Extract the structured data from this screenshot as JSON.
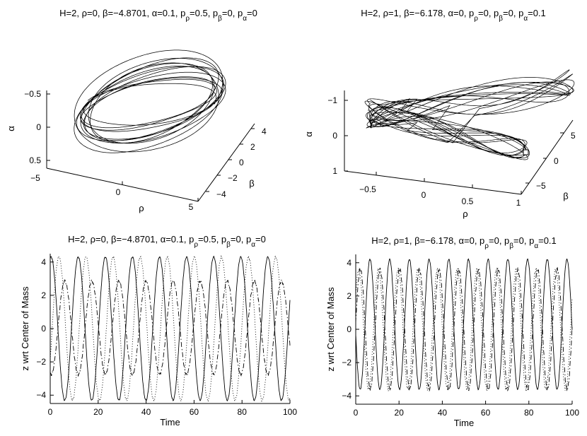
{
  "chart_data": [
    {
      "type": "line",
      "view": "3d",
      "title": {
        "base": "H=2, ρ=0, β=−4.8701, α=0.1, p",
        "parts": [
          [
            "ρ",
            "=0.5, p"
          ],
          [
            "β",
            "=0, p"
          ],
          [
            "α",
            "=0"
          ]
        ]
      },
      "xlabel": "ρ",
      "ylabel": "β",
      "zlabel": "α",
      "xlim": [
        -5,
        5
      ],
      "ylim": [
        -4,
        4
      ],
      "zlim": [
        -0.5,
        0.5
      ],
      "xticks": [
        "−5",
        "0",
        "5"
      ],
      "yticks": [
        "−4",
        "−2",
        "0",
        "2",
        "4"
      ],
      "zticks": [
        "−0.5",
        "0",
        "0.5"
      ],
      "trajectory": {
        "shape": "torus-ring",
        "rho_amplitude": 4.2,
        "beta_amplitude": 4.2,
        "alpha_amplitude": 0.3,
        "t_max": 100
      },
      "grid": false
    },
    {
      "type": "line",
      "view": "3d",
      "title": {
        "base": "H=2, ρ=1, β=−6.178, α=0, p",
        "parts": [
          [
            "ρ",
            "=0, p"
          ],
          [
            "β",
            "=0, p"
          ],
          [
            "α",
            "=0.1"
          ]
        ]
      },
      "xlabel": "ρ",
      "ylabel": "β",
      "zlabel": "α",
      "xlim": [
        -0.8,
        1
      ],
      "ylim": [
        -7,
        7
      ],
      "zlim": [
        -1,
        1
      ],
      "xticks": [
        "−0.5",
        "0",
        "0.5",
        "1"
      ],
      "yticks": [
        "−5",
        "0",
        "5"
      ],
      "zticks": [
        "−1",
        "0",
        "1"
      ],
      "trajectory": {
        "shape": "folded-band",
        "rho_range": [
          -0.7,
          1
        ],
        "beta_amplitude": 6.2,
        "alpha_amplitude": 0.95,
        "t_max": 100
      },
      "grid": false
    },
    {
      "type": "line",
      "title": {
        "base": "H=2, ρ=0, β=−4.8701, α=0.1, p",
        "parts": [
          [
            "ρ",
            "=0.5, p"
          ],
          [
            "β",
            "=0, p"
          ],
          [
            "α",
            "=0"
          ]
        ]
      },
      "xlabel": "Time",
      "ylabel": "z wrt Center of Mass",
      "xlim": [
        0,
        100
      ],
      "ylim": [
        -4.5,
        4.5
      ],
      "xticks": [
        0,
        20,
        40,
        60,
        80,
        100
      ],
      "yticks": [
        -4,
        -2,
        0,
        2,
        4
      ],
      "series": [
        {
          "style": "solid",
          "amplitude": 4.3,
          "period": 11.3,
          "phase": 1.35,
          "offset": 0,
          "jitter": 0.05
        },
        {
          "style": "dashdot",
          "amplitude": 2.8,
          "period": 11.3,
          "phase": -1.8,
          "offset": 0.05,
          "jitter": 0.12
        },
        {
          "style": "dotted",
          "amplitude": 4.3,
          "period": 11.3,
          "phase": -0.45,
          "offset": 0,
          "jitter": 0.08
        }
      ],
      "grid": false
    },
    {
      "type": "line",
      "title": {
        "base": "H=2, ρ=1, β=−6.178, α=0, p",
        "parts": [
          [
            "ρ",
            "=0, p"
          ],
          [
            "β",
            "=0, p"
          ],
          [
            "α",
            "=0.1"
          ]
        ]
      },
      "xlabel": "Time",
      "ylabel": "z wrt Center of Mass",
      "xlim": [
        0,
        100
      ],
      "ylim": [
        -4.5,
        4.5
      ],
      "xticks": [
        0,
        20,
        40,
        60,
        80,
        100
      ],
      "yticks": [
        -4,
        -2,
        0,
        2,
        4
      ],
      "series": [
        {
          "style": "solid",
          "amplitude": 3.9,
          "period": 9.1,
          "phase": 3.3,
          "offset": 0.3,
          "jitter": 0.05
        },
        {
          "style": "dashdot",
          "amplitude": 3.6,
          "period": 9.1,
          "phase": 0.1,
          "offset": 0,
          "jitter": 0.15
        },
        {
          "style": "dotted",
          "amplitude": 3.6,
          "period": 9.1,
          "phase": 0.6,
          "offset": 0,
          "jitter": 0.15
        }
      ],
      "grid": false
    }
  ]
}
